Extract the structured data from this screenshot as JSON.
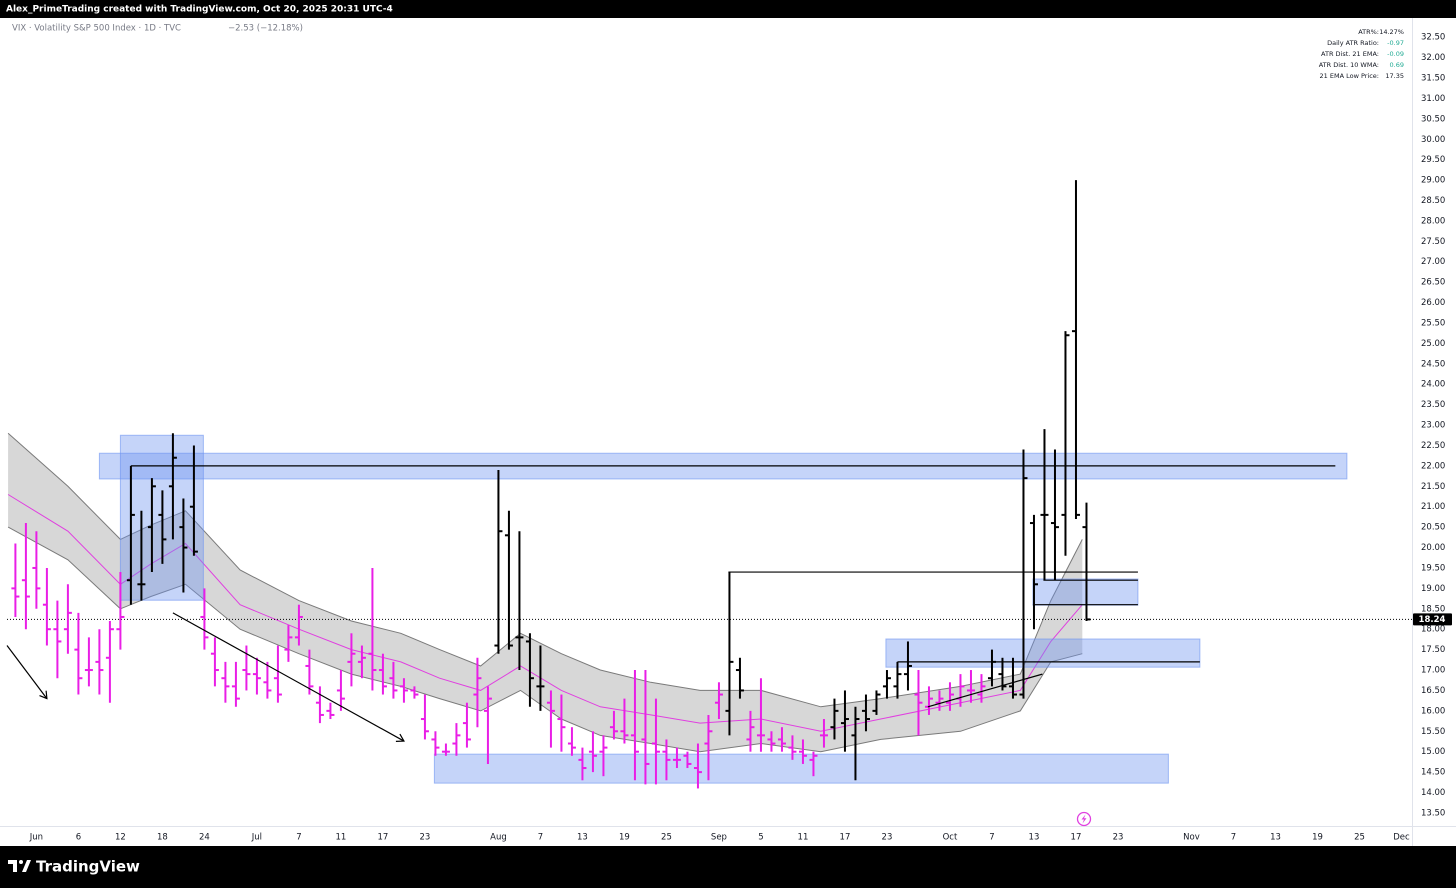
{
  "header": {
    "credit": "Alex_PrimeTrading created with TradingView.com, Oct 20, 2025 20:31 UTC-4",
    "brand": "TradingView"
  },
  "chart_data": {
    "type": "ohlc",
    "title": "VIX · Volatility S&P 500 Index · 1D · TVC",
    "subtitle": "−2.53 (−12.18%)",
    "grid": false,
    "xlim": [
      -2.8,
      131
    ],
    "ylim": [
      13.18,
      32.97
    ],
    "last_price": 18.24,
    "last_price_color": "#000000",
    "xticks": [
      {
        "value": 0,
        "label": "Jun"
      },
      {
        "value": 4,
        "label": "6"
      },
      {
        "value": 8,
        "label": "12"
      },
      {
        "value": 12,
        "label": "18"
      },
      {
        "value": 16,
        "label": "24"
      },
      {
        "value": 21,
        "label": "Jul"
      },
      {
        "value": 25,
        "label": "7"
      },
      {
        "value": 29,
        "label": "11"
      },
      {
        "value": 33,
        "label": "17"
      },
      {
        "value": 37,
        "label": "23"
      },
      {
        "value": 44,
        "label": "Aug"
      },
      {
        "value": 48,
        "label": "7"
      },
      {
        "value": 52,
        "label": "13"
      },
      {
        "value": 56,
        "label": "19"
      },
      {
        "value": 60,
        "label": "25"
      },
      {
        "value": 65,
        "label": "Sep"
      },
      {
        "value": 69,
        "label": "5"
      },
      {
        "value": 73,
        "label": "11"
      },
      {
        "value": 77,
        "label": "17"
      },
      {
        "value": 81,
        "label": "23"
      },
      {
        "value": 87,
        "label": "Oct"
      },
      {
        "value": 91,
        "label": "7"
      },
      {
        "value": 95,
        "label": "13"
      },
      {
        "value": 99,
        "label": "17"
      },
      {
        "value": 103,
        "label": "23"
      },
      {
        "value": 110,
        "label": "Nov"
      },
      {
        "value": 114,
        "label": "7"
      },
      {
        "value": 118,
        "label": "13"
      },
      {
        "value": 122,
        "label": "19"
      },
      {
        "value": 126,
        "label": "25"
      },
      {
        "value": 130,
        "label": "Dec"
      }
    ],
    "yticks": [
      {
        "value": 13.5,
        "label": "13.50"
      },
      {
        "value": 14,
        "label": "14.00"
      },
      {
        "value": 14.5,
        "label": "14.50"
      },
      {
        "value": 15,
        "label": "15.00"
      },
      {
        "value": 15.5,
        "label": "15.50"
      },
      {
        "value": 16,
        "label": "16.00"
      },
      {
        "value": 16.5,
        "label": "16.50"
      },
      {
        "value": 17,
        "label": "17.00"
      },
      {
        "value": 17.5,
        "label": "17.50"
      },
      {
        "value": 18,
        "label": "18.00"
      },
      {
        "value": 18.5,
        "label": "18.50"
      },
      {
        "value": 19,
        "label": "19.00"
      },
      {
        "value": 19.5,
        "label": "19.50"
      },
      {
        "value": 20,
        "label": "20.00"
      },
      {
        "value": 20.5,
        "label": "20.50"
      },
      {
        "value": 21,
        "label": "21.00"
      },
      {
        "value": 21.5,
        "label": "21.50"
      },
      {
        "value": 22,
        "label": "22.00"
      },
      {
        "value": 22.5,
        "label": "22.50"
      },
      {
        "value": 23,
        "label": "23.00"
      },
      {
        "value": 23.5,
        "label": "23.50"
      },
      {
        "value": 24,
        "label": "24.00"
      },
      {
        "value": 24.5,
        "label": "24.50"
      },
      {
        "value": 25,
        "label": "25.00"
      },
      {
        "value": 25.5,
        "label": "25.50"
      },
      {
        "value": 26,
        "label": "26.00"
      },
      {
        "value": 26.5,
        "label": "26.50"
      },
      {
        "value": 27,
        "label": "27.00"
      },
      {
        "value": 27.5,
        "label": "27.50"
      },
      {
        "value": 28,
        "label": "28.00"
      },
      {
        "value": 28.5,
        "label": "28.50"
      },
      {
        "value": 29,
        "label": "29.00"
      },
      {
        "value": 29.5,
        "label": "29.50"
      },
      {
        "value": 30,
        "label": "30.00"
      },
      {
        "value": 30.5,
        "label": "30.50"
      },
      {
        "value": 31,
        "label": "31.00"
      },
      {
        "value": 31.5,
        "label": "31.50"
      },
      {
        "value": 32,
        "label": "32.00"
      },
      {
        "value": 32.5,
        "label": "32.50"
      }
    ],
    "bars": {
      "x": [
        -2,
        -1,
        0,
        1,
        2,
        3,
        4,
        5,
        6,
        7,
        8,
        9,
        10,
        11,
        12,
        13,
        14,
        15,
        16,
        17,
        18,
        19,
        20,
        21,
        22,
        23,
        24,
        25,
        26,
        27,
        28,
        29,
        30,
        31,
        32,
        33,
        34,
        35,
        36,
        37,
        38,
        39,
        40,
        41,
        42,
        43,
        44,
        45,
        46,
        47,
        48,
        49,
        50,
        51,
        52,
        53,
        54,
        55,
        56,
        57,
        58,
        59,
        60,
        61,
        62,
        63,
        64,
        65,
        66,
        67,
        68,
        69,
        70,
        71,
        72,
        73,
        74,
        75,
        76,
        77,
        78,
        79,
        80,
        81,
        82,
        83,
        84,
        85,
        86,
        87,
        88,
        89,
        90,
        91,
        92,
        93,
        94,
        95,
        96,
        97,
        98,
        99,
        100
      ],
      "open": [
        19.0,
        19.2,
        19.5,
        18.6,
        18.0,
        18.0,
        17.5,
        17.0,
        17.2,
        17.3,
        18.0,
        19.2,
        19.1,
        20.5,
        20.8,
        21.5,
        20.5,
        21.0,
        18.3,
        17.4,
        16.8,
        16.6,
        17.0,
        16.9,
        16.7,
        16.8,
        17.5,
        17.8,
        17.1,
        16.2,
        16.0,
        16.5,
        17.2,
        17.2,
        17.4,
        17.0,
        16.8,
        16.6,
        16.5,
        15.8,
        15.3,
        15.0,
        15.2,
        15.7,
        16.4,
        16.0,
        17.6,
        20.3,
        17.8,
        17.7,
        16.6,
        16.2,
        15.8,
        15.2,
        14.8,
        15.0,
        15.0,
        15.6,
        15.5,
        15.4,
        15.3,
        15.2,
        15.0,
        14.8,
        14.9,
        14.6,
        15.2,
        16.2,
        16.0,
        17.0,
        15.3,
        15.4,
        15.3,
        15.3,
        15.1,
        15.0,
        14.8,
        15.4,
        15.6,
        15.7,
        15.4,
        16.0,
        16.0,
        16.6,
        16.6,
        16.9,
        16.4,
        16.1,
        16.2,
        16.2,
        16.3,
        16.5,
        16.4,
        16.8,
        16.9,
        16.6,
        16.4,
        20.6,
        20.8,
        20.6,
        20.8,
        25.3,
        20.5
      ],
      "high": [
        20.1,
        20.6,
        20.4,
        19.5,
        18.7,
        19.1,
        18.4,
        17.8,
        18.0,
        18.2,
        19.4,
        22.0,
        20.9,
        21.7,
        21.4,
        22.8,
        21.2,
        22.5,
        19.0,
        17.8,
        17.2,
        17.2,
        17.6,
        17.3,
        17.2,
        17.6,
        18.1,
        18.6,
        17.5,
        16.6,
        16.2,
        17.0,
        17.9,
        17.6,
        19.5,
        17.4,
        17.2,
        16.8,
        16.6,
        16.4,
        15.5,
        15.2,
        15.7,
        16.2,
        17.3,
        16.6,
        21.9,
        20.9,
        20.4,
        17.9,
        17.6,
        16.5,
        16.4,
        15.6,
        15.1,
        15.5,
        15.4,
        16.0,
        16.3,
        17.0,
        17.0,
        16.3,
        15.3,
        15.1,
        15.0,
        15.2,
        15.9,
        16.7,
        19.4,
        17.3,
        16.0,
        16.8,
        15.5,
        15.6,
        15.4,
        15.3,
        15.0,
        15.8,
        16.3,
        16.5,
        16.1,
        16.4,
        16.5,
        17.0,
        17.2,
        17.7,
        17.0,
        16.6,
        16.5,
        16.7,
        16.9,
        17.0,
        16.9,
        17.5,
        17.3,
        17.3,
        22.4,
        20.8,
        22.9,
        22.4,
        25.3,
        29.0,
        21.1
      ],
      "low": [
        18.3,
        18.0,
        18.5,
        17.6,
        16.8,
        17.4,
        16.4,
        16.6,
        16.4,
        16.2,
        17.5,
        18.6,
        18.7,
        19.4,
        19.6,
        20.2,
        18.9,
        19.8,
        17.5,
        16.6,
        16.2,
        16.1,
        16.5,
        16.4,
        16.3,
        16.2,
        17.2,
        17.6,
        16.4,
        15.7,
        15.8,
        16.0,
        16.6,
        16.8,
        16.5,
        16.4,
        16.3,
        16.2,
        16.3,
        15.3,
        14.9,
        14.9,
        14.9,
        15.1,
        15.6,
        14.7,
        17.4,
        17.5,
        17.0,
        16.1,
        16.0,
        15.1,
        15.0,
        14.9,
        14.3,
        14.5,
        14.4,
        15.3,
        15.2,
        14.3,
        14.2,
        14.2,
        14.3,
        14.6,
        14.6,
        14.1,
        14.3,
        15.8,
        15.4,
        16.3,
        15.0,
        15.0,
        15.0,
        15.0,
        14.8,
        14.7,
        14.4,
        15.1,
        15.3,
        15.0,
        14.3,
        15.5,
        15.9,
        16.3,
        16.3,
        16.5,
        15.4,
        15.9,
        16.0,
        16.0,
        16.1,
        16.2,
        16.2,
        16.6,
        16.5,
        16.3,
        16.3,
        18.0,
        19.2,
        19.2,
        19.8,
        20.7,
        18.2
      ],
      "close": [
        18.8,
        18.8,
        19.0,
        18.0,
        17.7,
        18.4,
        16.8,
        17.0,
        17.0,
        18.0,
        18.3,
        20.8,
        19.1,
        21.5,
        20.2,
        22.2,
        20.0,
        19.9,
        17.8,
        17.0,
        16.6,
        16.3,
        16.9,
        16.8,
        16.5,
        16.4,
        17.8,
        18.3,
        16.6,
        15.9,
        15.9,
        16.3,
        17.4,
        17.3,
        17.0,
        16.6,
        16.5,
        16.5,
        16.4,
        15.5,
        15.1,
        15.0,
        15.4,
        15.3,
        16.8,
        16.3,
        20.4,
        17.6,
        17.8,
        16.8,
        16.6,
        16.0,
        15.6,
        15.1,
        14.6,
        14.9,
        15.1,
        15.5,
        15.4,
        15.0,
        14.7,
        15.0,
        14.8,
        14.8,
        14.7,
        14.5,
        15.5,
        16.4,
        17.2,
        16.5,
        15.6,
        15.4,
        15.2,
        15.2,
        15.0,
        14.9,
        14.9,
        15.4,
        16.0,
        15.8,
        15.8,
        15.8,
        16.4,
        16.8,
        16.9,
        17.1,
        16.2,
        16.3,
        16.3,
        16.4,
        16.6,
        16.5,
        16.6,
        17.2,
        16.6,
        16.4,
        21.7,
        19.1,
        20.8,
        20.5,
        25.2,
        20.8,
        18.24
      ],
      "colors": [
        "#e91ee6",
        "#e91ee6",
        "#e91ee6",
        "#e91ee6",
        "#e91ee6",
        "#e91ee6",
        "#e91ee6",
        "#e91ee6",
        "#e91ee6",
        "#e91ee6",
        "#e91ee6",
        "#000000",
        "#000000",
        "#000000",
        "#000000",
        "#000000",
        "#000000",
        "#000000",
        "#e91ee6",
        "#e91ee6",
        "#e91ee6",
        "#e91ee6",
        "#e91ee6",
        "#e91ee6",
        "#e91ee6",
        "#e91ee6",
        "#e91ee6",
        "#e91ee6",
        "#e91ee6",
        "#e91ee6",
        "#e91ee6",
        "#e91ee6",
        "#e91ee6",
        "#e91ee6",
        "#e91ee6",
        "#e91ee6",
        "#e91ee6",
        "#e91ee6",
        "#e91ee6",
        "#e91ee6",
        "#e91ee6",
        "#e91ee6",
        "#e91ee6",
        "#e91ee6",
        "#e91ee6",
        "#e91ee6",
        "#000000",
        "#000000",
        "#000000",
        "#000000",
        "#000000",
        "#e91ee6",
        "#e91ee6",
        "#e91ee6",
        "#e91ee6",
        "#e91ee6",
        "#e91ee6",
        "#e91ee6",
        "#e91ee6",
        "#e91ee6",
        "#e91ee6",
        "#e91ee6",
        "#e91ee6",
        "#e91ee6",
        "#e91ee6",
        "#e91ee6",
        "#e91ee6",
        "#e91ee6",
        "#000000",
        "#000000",
        "#e91ee6",
        "#e91ee6",
        "#e91ee6",
        "#e91ee6",
        "#e91ee6",
        "#e91ee6",
        "#e91ee6",
        "#e91ee6",
        "#000000",
        "#000000",
        "#000000",
        "#000000",
        "#000000",
        "#000000",
        "#000000",
        "#000000",
        "#e91ee6",
        "#e91ee6",
        "#e91ee6",
        "#e91ee6",
        "#e91ee6",
        "#e91ee6",
        "#e91ee6",
        "#000000",
        "#000000",
        "#000000",
        "#000000",
        "#000000",
        "#000000",
        "#000000",
        "#000000",
        "#000000",
        "#000000"
      ]
    },
    "band": {
      "x": [
        -2.7,
        3.0,
        8.0,
        10.9,
        14.2,
        19.4,
        25,
        30,
        34.7,
        38.4,
        42.3,
        46.1,
        50,
        53.7,
        58.5,
        63.2,
        69,
        74.7,
        80.4,
        88,
        93.7,
        96.6,
        99.6
      ],
      "upper": [
        22.8,
        21.5,
        20.2,
        20.55,
        20.9,
        19.45,
        18.7,
        18.2,
        17.9,
        17.5,
        17.1,
        17.9,
        17.4,
        17.0,
        16.7,
        16.5,
        16.5,
        16.1,
        16.3,
        16.6,
        16.9,
        18.7,
        20.2
      ],
      "ema": [
        21.3,
        20.4,
        19.1,
        19.6,
        20.1,
        18.6,
        18.0,
        17.5,
        17.2,
        16.8,
        16.5,
        17.1,
        16.5,
        16.1,
        15.9,
        15.7,
        15.8,
        15.5,
        15.8,
        16.2,
        16.5,
        17.7,
        18.6
      ],
      "lower": [
        20.5,
        19.7,
        18.5,
        18.8,
        19.1,
        18.0,
        17.4,
        16.9,
        16.6,
        16.3,
        16.0,
        16.5,
        15.8,
        15.4,
        15.2,
        15.0,
        15.2,
        15.0,
        15.3,
        15.5,
        16.0,
        17.2,
        17.4
      ],
      "fill": "#bdbdbd",
      "line_color": "#7a7a7a",
      "ema_color": "#e040e0"
    },
    "zones": [
      {
        "x": [
          6.0,
          124.8
        ],
        "y": [
          21.68,
          22.31
        ]
      },
      {
        "x": [
          8.0,
          15.9
        ],
        "y": [
          18.71,
          22.75
        ]
      },
      {
        "x": [
          80.9,
          110.8
        ],
        "y": [
          17.07,
          17.76
        ]
      },
      {
        "x": [
          94.9,
          104.9
        ],
        "y": [
          18.59,
          19.23
        ]
      },
      {
        "x": [
          37.9,
          107.8
        ],
        "y": [
          14.23,
          14.94
        ]
      }
    ],
    "zone_color": "#6d93f0",
    "lines": [
      {
        "x": [
          9.0,
          123.7
        ],
        "y": [
          22.0,
          22.0
        ]
      },
      {
        "x": [
          65.9,
          104.9
        ],
        "y": [
          19.4,
          19.4
        ]
      },
      {
        "x": [
          95.9,
          104.9
        ],
        "y": [
          19.2,
          19.2
        ]
      },
      {
        "x": [
          94.9,
          104.9
        ],
        "y": [
          18.6,
          18.6
        ]
      },
      {
        "x": [
          82.0,
          110.8
        ],
        "y": [
          17.2,
          17.2
        ]
      },
      {
        "x": [
          84.9,
          95.8
        ],
        "y": [
          16.1,
          16.9
        ]
      }
    ],
    "arrows": [
      {
        "x": [
          -2.8,
          1.0
        ],
        "y": [
          17.6,
          16.3
        ]
      },
      {
        "x": [
          13.0,
          35.0
        ],
        "y": [
          18.4,
          15.26
        ]
      }
    ],
    "info_table": [
      {
        "label": "ATR%:",
        "value": "14.27%",
        "color": "#131722"
      },
      {
        "label": "Daily ATR Ratio:",
        "value": "-0.97",
        "color": "#22ab94"
      },
      {
        "label": "ATR Dist. 21 EMA:",
        "value": "-0.09",
        "color": "#22ab94"
      },
      {
        "label": "ATR Dist. 10 WMA:",
        "value": "0.69",
        "color": "#22ab94"
      },
      {
        "label": "21 EMA Low Price:",
        "value": "17.35",
        "color": "#131722"
      }
    ]
  }
}
